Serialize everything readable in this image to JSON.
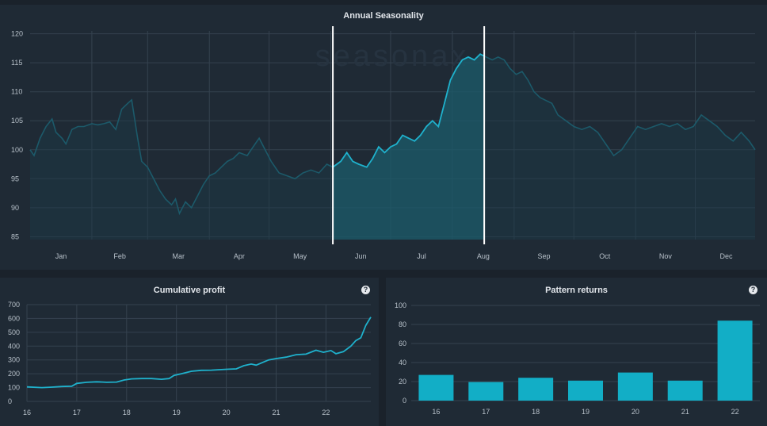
{
  "seasonality": {
    "title": "Annual Seasonality",
    "watermark": "seasonax",
    "chart_data": {
      "type": "line",
      "title": "Annual Seasonality",
      "y_ticks": [
        85,
        90,
        95,
        100,
        105,
        110,
        115,
        120
      ],
      "ylim": [
        84.5,
        120.5
      ],
      "x_ticks": [
        "Jan",
        "Feb",
        "Mar",
        "Apr",
        "May",
        "Jun",
        "Jul",
        "Aug",
        "Sep",
        "Oct",
        "Nov",
        "Dec"
      ],
      "x_range_days": [
        1,
        365
      ],
      "highlight_days": [
        153,
        229
      ],
      "series": [
        {
          "x": [
            1,
            3,
            6,
            9,
            12,
            14,
            17,
            19,
            22,
            25,
            28,
            32,
            35,
            38,
            41,
            44,
            47,
            50,
            52,
            55,
            57,
            60,
            63,
            66,
            69,
            72,
            74,
            76,
            79,
            82,
            85,
            88,
            91,
            94,
            97,
            100,
            103,
            106,
            110,
            113,
            116,
            119,
            122,
            126,
            130,
            134,
            138,
            142,
            146,
            150,
            153,
            157,
            160,
            163,
            166,
            170,
            173,
            176,
            179,
            182,
            185,
            188,
            191,
            194,
            197,
            200,
            203,
            206,
            209,
            212,
            215,
            218,
            221,
            224,
            227,
            230,
            233,
            236,
            239,
            242,
            245,
            248,
            251,
            254,
            257,
            260,
            263,
            266,
            270,
            274,
            278,
            282,
            286,
            290,
            294,
            298,
            302,
            306,
            310,
            314,
            318,
            322,
            326,
            330,
            334,
            338,
            342,
            346,
            350,
            354,
            358,
            362,
            365
          ],
          "y": [
            100,
            99,
            102,
            104,
            105.3,
            103,
            102,
            101,
            103.5,
            104,
            104,
            104.5,
            104.3,
            104.5,
            104.8,
            103.5,
            107,
            108,
            108.6,
            102,
            98,
            97,
            95,
            93,
            91.5,
            90.5,
            91.5,
            89,
            91,
            90,
            92,
            94,
            95.5,
            96,
            97,
            98,
            98.5,
            99.5,
            99,
            100.5,
            102,
            100,
            98,
            96,
            95.5,
            95,
            96,
            96.5,
            96,
            97.5,
            97,
            98,
            99.5,
            98,
            97.5,
            97,
            98.5,
            100.5,
            99.5,
            100.5,
            101,
            102.5,
            102,
            101.5,
            102.5,
            104,
            105,
            104,
            108,
            112,
            114,
            115.5,
            116,
            115.5,
            116.5,
            116,
            115.5,
            116,
            115.5,
            114,
            113,
            113.5,
            112,
            110,
            109,
            108.5,
            108,
            106,
            105,
            104,
            103.5,
            104,
            103,
            101,
            99,
            100,
            102,
            104,
            103.5,
            104,
            104.5,
            104,
            104.5,
            103.5,
            104,
            106,
            105,
            104,
            102.5,
            101.5,
            103,
            101.5,
            100
          ]
        }
      ]
    }
  },
  "cumulative": {
    "title": "Cumulative profit",
    "help_icon": "?",
    "chart_data": {
      "type": "line",
      "title": "Cumulative profit",
      "y_ticks": [
        0,
        100,
        200,
        300,
        400,
        500,
        600,
        700
      ],
      "ylim": [
        0,
        700
      ],
      "x_ticks": [
        "16",
        "17",
        "18",
        "19",
        "20",
        "21",
        "22"
      ],
      "x_range": [
        16,
        22.9
      ],
      "series": [
        {
          "x": [
            16.0,
            16.3,
            16.5,
            16.7,
            16.9,
            17.0,
            17.2,
            17.4,
            17.6,
            17.8,
            17.95,
            18.1,
            18.3,
            18.5,
            18.7,
            18.85,
            18.95,
            19.1,
            19.3,
            19.5,
            19.7,
            19.9,
            20.05,
            20.2,
            20.35,
            20.5,
            20.6,
            20.75,
            20.85,
            21.0,
            21.2,
            21.4,
            21.6,
            21.8,
            21.95,
            22.1,
            22.2,
            22.35,
            22.5,
            22.6,
            22.7,
            22.8,
            22.9
          ],
          "y": [
            105,
            100,
            103,
            108,
            110,
            130,
            138,
            142,
            138,
            140,
            155,
            163,
            165,
            165,
            160,
            165,
            188,
            200,
            218,
            225,
            226,
            230,
            233,
            235,
            258,
            270,
            262,
            285,
            300,
            310,
            320,
            338,
            342,
            370,
            355,
            368,
            345,
            360,
            400,
            440,
            460,
            550,
            610
          ]
        }
      ]
    }
  },
  "pattern": {
    "title": "Pattern returns",
    "help_icon": "?",
    "chart_data": {
      "type": "bar",
      "title": "Pattern returns",
      "categories": [
        "16",
        "17",
        "18",
        "19",
        "20",
        "21",
        "22"
      ],
      "values": [
        27,
        19.5,
        24,
        21,
        29.5,
        21,
        84
      ],
      "y_ticks": [
        0,
        20,
        40,
        60,
        80,
        100
      ],
      "ylim": [
        0,
        100
      ]
    }
  },
  "colors": {
    "line": "#1fb1cc",
    "line_dim": "#1c5a6a",
    "bar": "#12aec6",
    "grid": "#35424f",
    "highlight_line": "#ffffff"
  }
}
